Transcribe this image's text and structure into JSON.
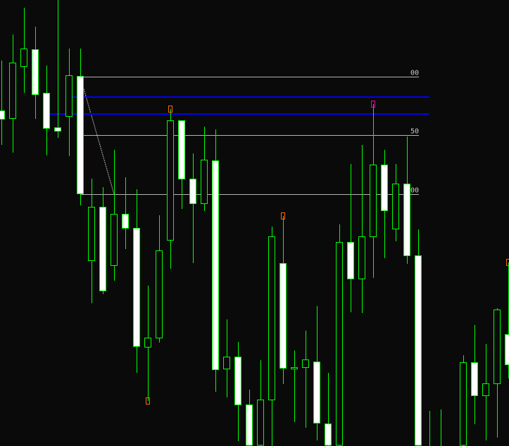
{
  "chart_data": {
    "type": "candlestick",
    "title": "",
    "ylim": [
      0,
      63.4
    ],
    "grid": false,
    "colors": {
      "background": "#0a0a0a",
      "wick_and_outline": "#00ff00",
      "bear_body": "#ffffff",
      "bull_body": "#0a0a0a",
      "fib_lines": "#b4b4b4",
      "blue_lines": "#0000ff",
      "marker": "#ff6a00",
      "marker_alt": "#ff00aa"
    },
    "candles": [
      [
        47.7,
        54.8,
        42.8,
        46.5
      ],
      [
        46.6,
        58.5,
        41.7,
        54.5
      ],
      [
        54.0,
        62.3,
        50.2,
        56.5
      ],
      [
        56.4,
        59.6,
        46.5,
        50.0
      ],
      [
        50.2,
        54.1,
        41.3,
        45.2
      ],
      [
        45.3,
        63.4,
        43.8,
        44.8
      ],
      [
        46.9,
        56.5,
        41.2,
        52.7
      ],
      [
        52.6,
        56.5,
        34.2,
        35.9
      ],
      [
        26.4,
        38.0,
        20.3,
        34.0
      ],
      [
        34.0,
        36.8,
        21.6,
        22.1
      ],
      [
        25.7,
        42.1,
        23.5,
        33.0
      ],
      [
        33.0,
        38.2,
        28.0,
        31.0
      ],
      [
        31.0,
        36.5,
        10.4,
        14.2
      ],
      [
        14.1,
        22.8,
        6.4,
        15.4
      ],
      [
        15.4,
        32.8,
        14.7,
        27.8
      ],
      [
        29.3,
        47.9,
        25.2,
        46.3
      ],
      [
        46.3,
        46.3,
        33.7,
        38.0
      ],
      [
        38.0,
        41.6,
        26.0,
        34.5
      ],
      [
        34.5,
        45.4,
        33.4,
        40.7
      ],
      [
        40.6,
        45.0,
        7.7,
        10.9
      ],
      [
        11.0,
        18.0,
        6.9,
        12.7
      ],
      [
        12.7,
        14.8,
        0.7,
        5.9
      ],
      [
        5.9,
        8.0,
        -3,
        -1
      ],
      [
        -1,
        12.2,
        -3,
        6.6
      ],
      [
        6.6,
        31.2,
        -2,
        29.8
      ],
      [
        26.0,
        32.7,
        8.8,
        11.1
      ],
      [
        11.0,
        13.6,
        3.4,
        11.2
      ],
      [
        11.2,
        16.4,
        2.6,
        12.3
      ],
      [
        12.0,
        19.9,
        0.8,
        3.3
      ],
      [
        3.2,
        10.4,
        -4,
        -2
      ],
      [
        -2,
        31.5,
        -4,
        29.0
      ],
      [
        29.0,
        40.1,
        19.0,
        23.8
      ],
      [
        23.8,
        42.8,
        18.9,
        29.8
      ],
      [
        29.8,
        48.6,
        23.9,
        40.0
      ],
      [
        40.0,
        42.1,
        26.7,
        33.5
      ],
      [
        30.9,
        40.1,
        29.1,
        37.3
      ],
      [
        37.3,
        44.0,
        25.9,
        27.1
      ],
      [
        27.1,
        30.8,
        -5,
        -3
      ],
      [
        -1,
        5.0,
        -6,
        -4
      ],
      [
        -1,
        5.2,
        -6,
        -3
      ],
      null,
      [
        -2,
        12.9,
        -4,
        11.9
      ],
      [
        11.9,
        17.2,
        3.1,
        7.2
      ],
      [
        7.2,
        14.5,
        0.8,
        8.9
      ],
      [
        8.9,
        19.6,
        1.2,
        19.4
      ],
      [
        15.9,
        26.1,
        9.6,
        11.6
      ]
    ],
    "markers": [
      {
        "candle": 13,
        "side": "below",
        "color": "marker"
      },
      {
        "candle": 15,
        "side": "above",
        "color": "marker"
      },
      {
        "candle": 25,
        "side": "above",
        "color": "marker"
      },
      {
        "candle": 33,
        "side": "above",
        "color": "marker_alt"
      },
      {
        "candle": 45,
        "side": "above",
        "color": "marker"
      }
    ],
    "fib_levels": [
      {
        "price": 52.5,
        "label": "00"
      },
      {
        "price": 44.2,
        "label": "50"
      },
      {
        "price": 35.8,
        "label": "00"
      }
    ],
    "fib_range": {
      "from_candle": 7,
      "to_candle": 37
    },
    "fib_trendline": {
      "from": {
        "candle": 7,
        "price": 52.5
      },
      "to": {
        "candle": 10,
        "price": 35.8
      }
    },
    "horizontal_lines": [
      {
        "price": 49.6,
        "from_candle": 6,
        "to_candle": 38,
        "color": "blue_lines"
      },
      {
        "price": 47.2,
        "from_candle": 4,
        "to_candle": 38,
        "color": "blue_lines"
      }
    ]
  }
}
